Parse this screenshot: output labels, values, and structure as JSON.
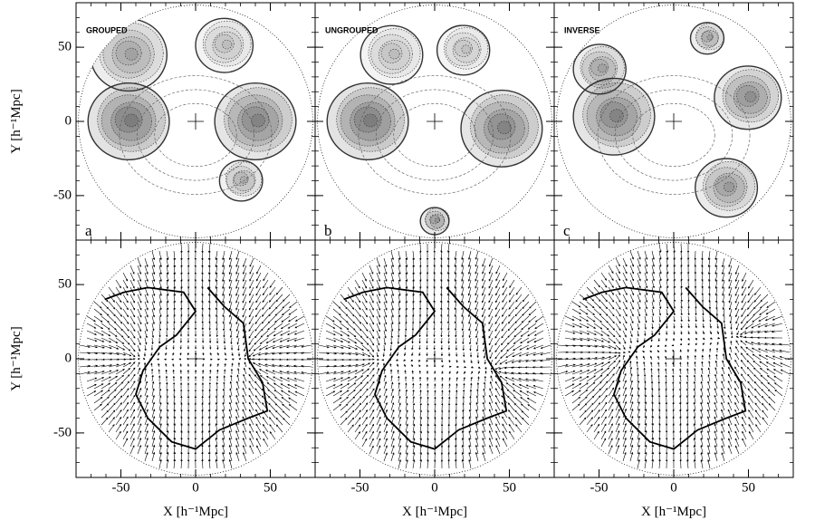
{
  "chart_data": [
    {
      "type": "contour",
      "title": "GROUPED",
      "panel_label": "a",
      "ylabel": "Y [h⁻¹Mpc]",
      "xlim": [
        -80,
        80
      ],
      "ylim": [
        -80,
        80
      ],
      "xticks": [
        -50,
        0,
        50
      ],
      "yticks": [
        -50,
        0,
        50
      ]
    },
    {
      "type": "contour",
      "title": "UNGROUPED",
      "panel_label": "b",
      "xlim": [
        -80,
        80
      ],
      "ylim": [
        -80,
        80
      ],
      "xticks": [
        -50,
        0,
        50
      ],
      "yticks": [
        -50,
        0,
        50
      ]
    },
    {
      "type": "contour",
      "title": "INVERSE",
      "panel_label": "c",
      "xlim": [
        -80,
        80
      ],
      "ylim": [
        -80,
        80
      ],
      "xticks": [
        -50,
        0,
        50
      ],
      "yticks": [
        -50,
        0,
        50
      ]
    },
    {
      "type": "vector",
      "ylabel": "Y [h⁻¹Mpc]",
      "xlabel": "X [h⁻¹Mpc]",
      "xlim": [
        -80,
        80
      ],
      "ylim": [
        -80,
        80
      ],
      "xticks": [
        -50,
        0,
        50
      ],
      "yticks": [
        -50,
        0,
        50
      ]
    },
    {
      "type": "vector",
      "xlabel": "X [h⁻¹Mpc]",
      "xlim": [
        -80,
        80
      ],
      "ylim": [
        -80,
        80
      ],
      "xticks": [
        -50,
        0,
        50
      ],
      "yticks": [
        -50,
        0,
        50
      ]
    },
    {
      "type": "vector",
      "xlabel": "X [h⁻¹Mpc]",
      "xlim": [
        -80,
        80
      ],
      "ylim": [
        -80,
        80
      ],
      "xticks": [
        -50,
        0,
        50
      ],
      "yticks": [
        -50,
        0,
        50
      ]
    }
  ]
}
